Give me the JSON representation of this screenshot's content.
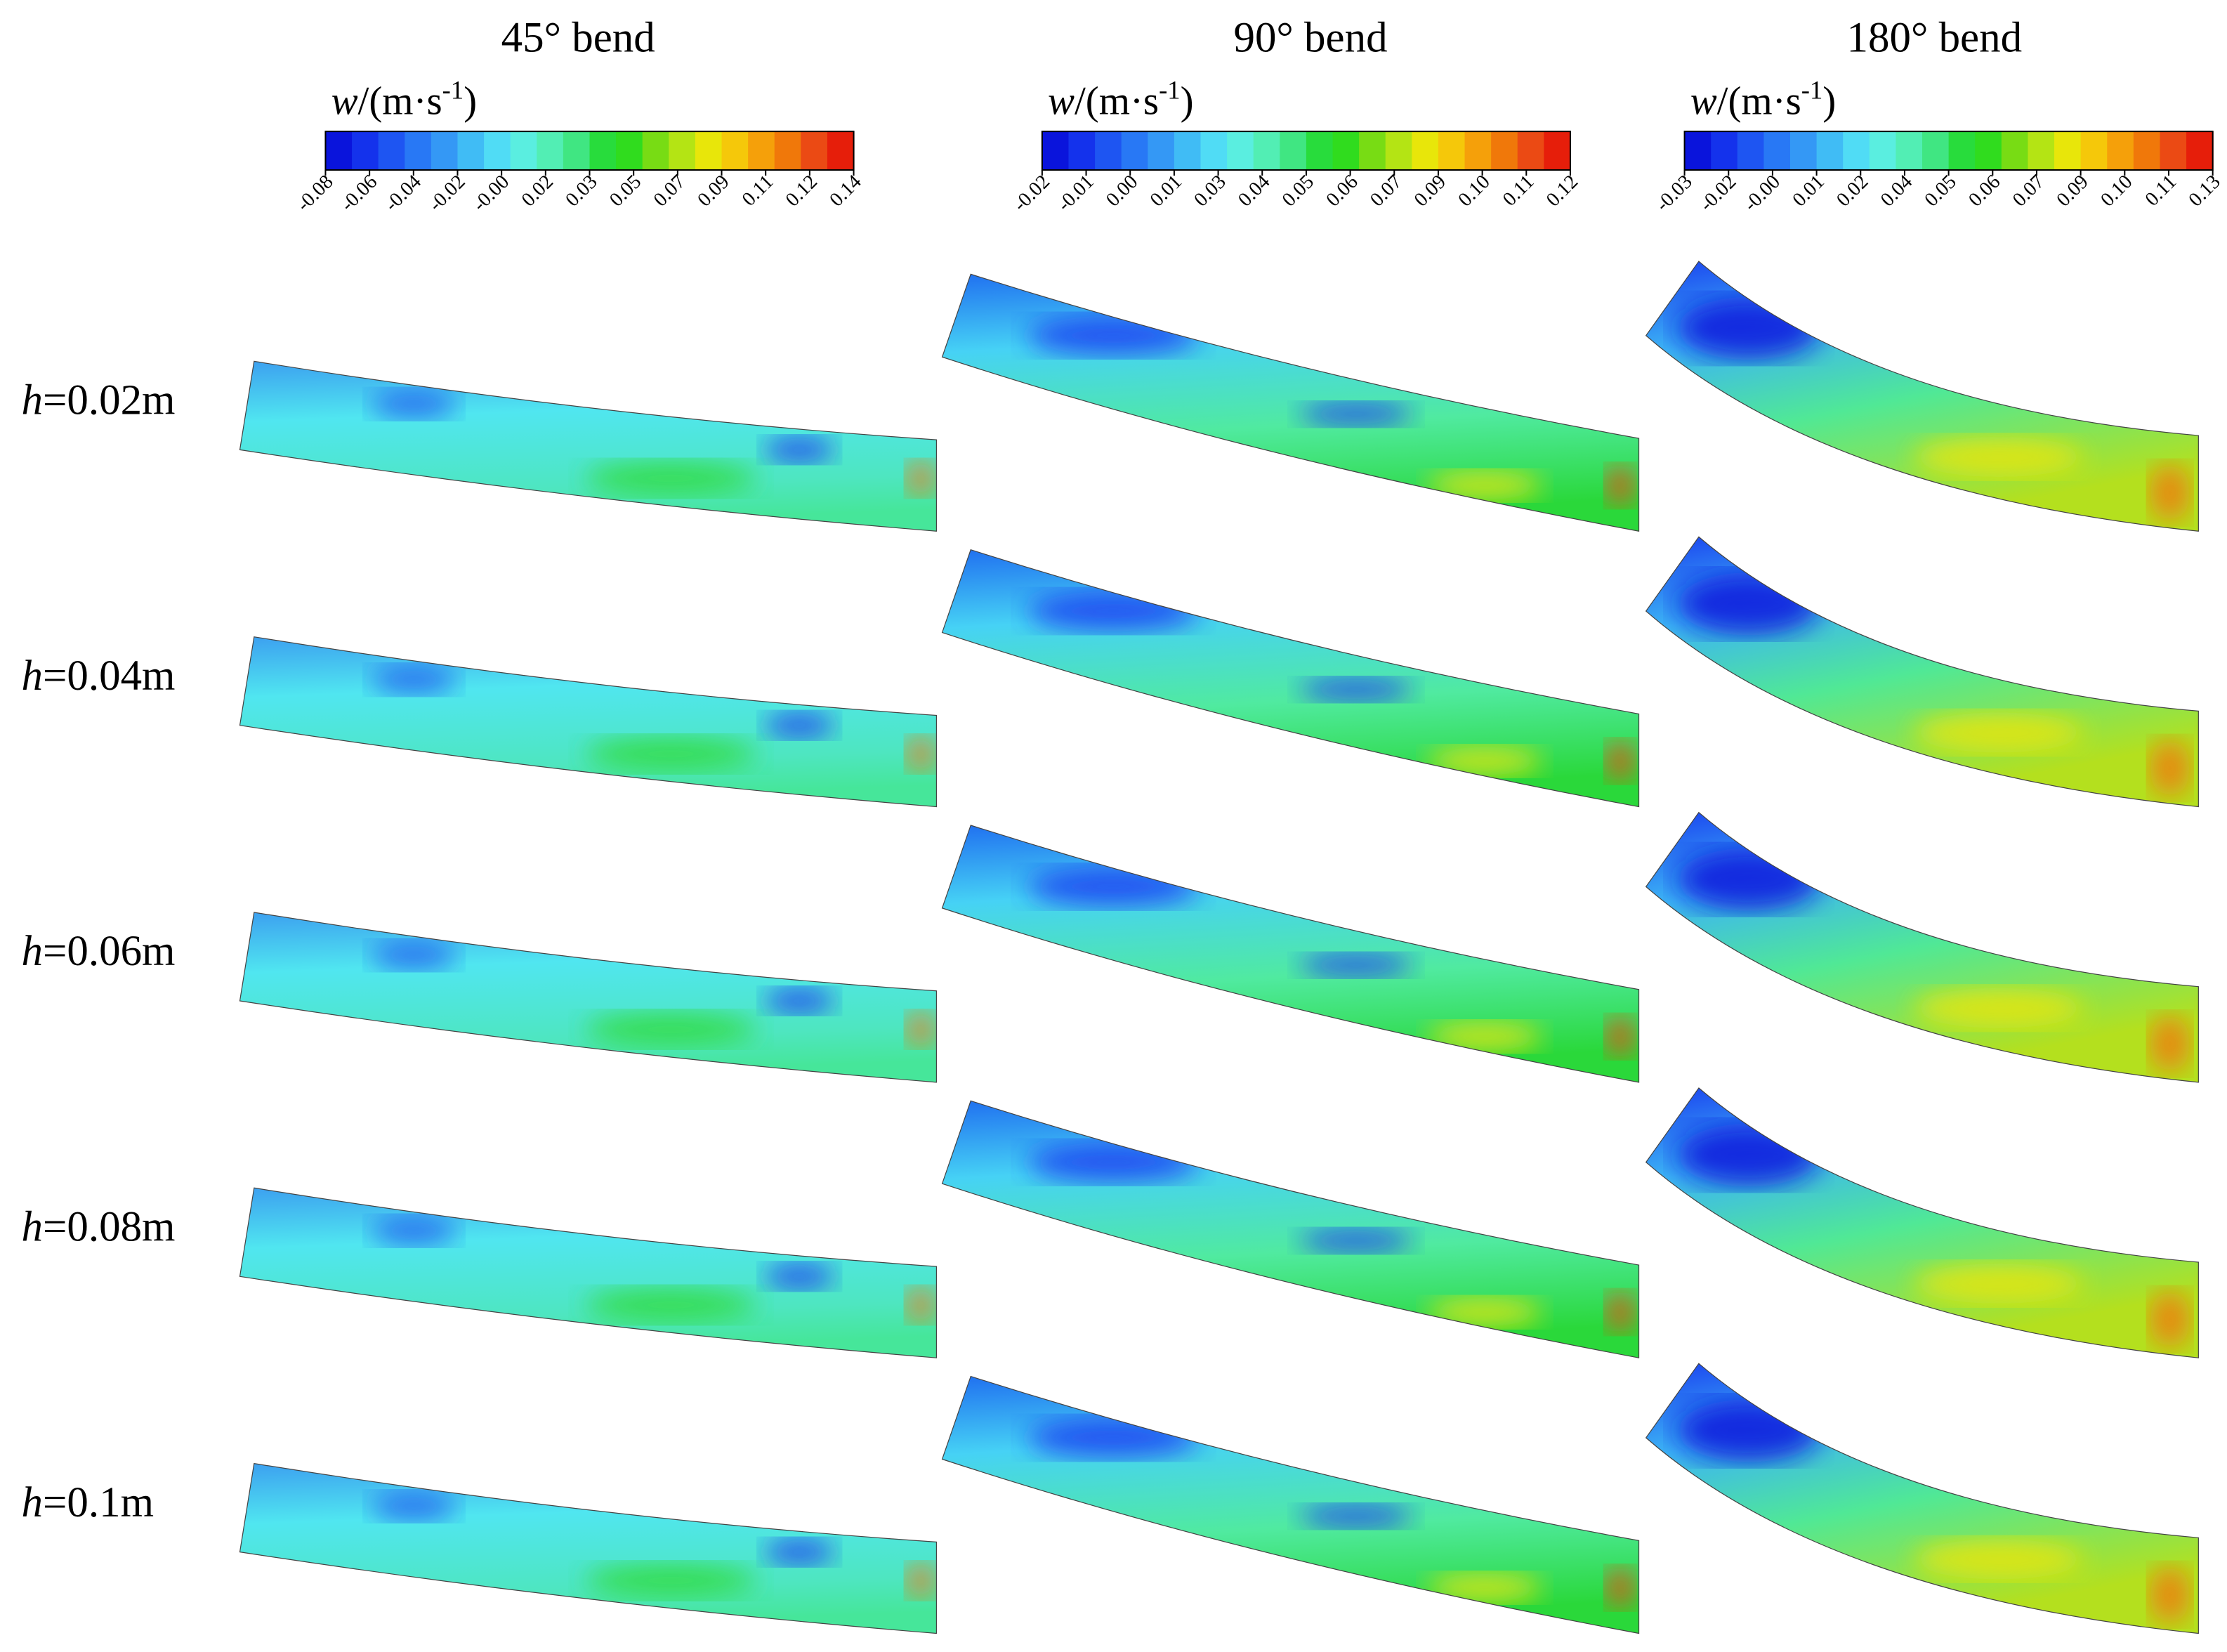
{
  "columns": [
    {
      "title": "45° bend",
      "legend": {
        "symbol": "w",
        "unit": "/(m·s",
        "exponent": "-1",
        "close": ")"
      },
      "ticks": [
        "-0.08",
        "-0.06",
        "-0.04",
        "-0.02",
        "-0.00",
        "0.02",
        "0.03",
        "0.05",
        "0.07",
        "0.09",
        "0.11",
        "0.12",
        "0.14"
      ]
    },
    {
      "title": "90° bend",
      "legend": {
        "symbol": "w",
        "unit": "/(m·s",
        "exponent": "-1",
        "close": ")"
      },
      "ticks": [
        "-0.02",
        "-0.01",
        "0.00",
        "0.01",
        "0.03",
        "0.04",
        "0.05",
        "0.06",
        "0.07",
        "0.09",
        "0.10",
        "0.11",
        "0.12"
      ]
    },
    {
      "title": "180° bend",
      "legend": {
        "symbol": "w",
        "unit": "/(m·s",
        "exponent": "-1",
        "close": ")"
      },
      "ticks": [
        "-0.03",
        "-0.02",
        "-0.00",
        "0.01",
        "0.02",
        "0.04",
        "0.05",
        "0.06",
        "0.07",
        "0.09",
        "0.10",
        "0.11",
        "0.13"
      ]
    }
  ],
  "rows": [
    {
      "symbol": "h",
      "value": "=0.02m"
    },
    {
      "symbol": "h",
      "value": "=0.04m"
    },
    {
      "symbol": "h",
      "value": "=0.06m"
    },
    {
      "symbol": "h",
      "value": "=0.08m"
    },
    {
      "symbol": "h",
      "value": "=0.1m"
    }
  ]
}
